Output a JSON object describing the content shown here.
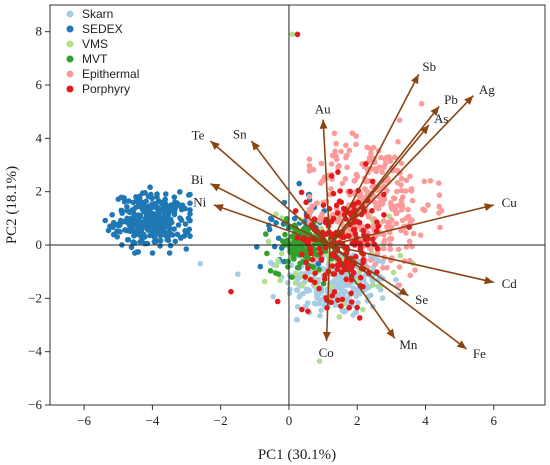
{
  "chart_data": {
    "type": "scatter",
    "subtype": "pca-biplot",
    "xlabel": "PC1 (30.1%)",
    "ylabel": "PC2 (18.1%)",
    "xlim": [
      -7,
      7.5
    ],
    "ylim": [
      -6,
      9
    ],
    "xticks": [
      -6,
      -4,
      -2,
      0,
      2,
      4,
      6
    ],
    "yticks": [
      -6,
      -4,
      -2,
      0,
      2,
      4,
      6,
      8
    ],
    "legend_position": "top-left",
    "grid": false,
    "series": [
      {
        "name": "Skarn",
        "color": "#a6cde3",
        "cloud": {
          "cx": 1.4,
          "cy": -1.4,
          "sx": 0.75,
          "sy": 0.65,
          "n": 260,
          "xmin": -1.5,
          "xmax": 3.2,
          "ymin": -2.8,
          "ymax": 0.3
        }
      },
      {
        "name": "SEDEX",
        "color": "#1f78b4",
        "cloud": {
          "cx": -4.0,
          "cy": 0.9,
          "sx": 0.55,
          "sy": 0.5,
          "n": 300,
          "xmin": -5.5,
          "xmax": -2.9,
          "ymin": -0.3,
          "ymax": 3.0
        },
        "cloud2": {
          "cx": 0.2,
          "cy": 0.7,
          "sx": 0.5,
          "sy": 0.8,
          "n": 45
        }
      },
      {
        "name": "VMS",
        "color": "#b2df8a",
        "cloud": {
          "cx": 1.3,
          "cy": -0.5,
          "sx": 0.8,
          "sy": 1.0,
          "n": 70
        }
      },
      {
        "name": "MVT",
        "color": "#33a02c",
        "cloud": {
          "cx": 0.4,
          "cy": -0.1,
          "sx": 0.45,
          "sy": 0.45,
          "n": 110
        }
      },
      {
        "name": "Epithermal",
        "color": "#fb9a99",
        "cloud": {
          "cx": 2.4,
          "cy": 1.5,
          "sx": 0.9,
          "sy": 1.3,
          "n": 320,
          "xmin": 0.6,
          "xmax": 4.6,
          "ymin": -1.5,
          "ymax": 5.3
        }
      },
      {
        "name": "Porphyry",
        "color": "#e31a1c",
        "cloud": {
          "cx": 1.6,
          "cy": 0.2,
          "sx": 0.6,
          "sy": 1.1,
          "n": 200
        }
      }
    ],
    "outliers": [
      {
        "series": "VMS",
        "x": 0.1,
        "y": 7.9
      },
      {
        "series": "Porphyry",
        "x": 0.25,
        "y": 7.9
      },
      {
        "series": "Porphyry",
        "x": -1.7,
        "y": -1.75
      },
      {
        "series": "Skarn",
        "x": -2.6,
        "y": -0.7
      }
    ],
    "loadings_origin": [
      1.2,
      0
    ],
    "loadings": [
      {
        "label": "Sb",
        "x": 3.8,
        "y": 6.4
      },
      {
        "label": "Ag",
        "x": 5.4,
        "y": 5.6
      },
      {
        "label": "Pb",
        "x": 4.4,
        "y": 5.2
      },
      {
        "label": "As",
        "x": 4.1,
        "y": 4.5
      },
      {
        "label": "Au",
        "x": 1.0,
        "y": 4.7
      },
      {
        "label": "Te",
        "x": -2.3,
        "y": 3.9
      },
      {
        "label": "Sn",
        "x": -1.1,
        "y": 3.9
      },
      {
        "label": "Bi",
        "x": -2.3,
        "y": 2.3
      },
      {
        "label": "Ni",
        "x": -2.2,
        "y": 1.5
      },
      {
        "label": "Cu",
        "x": 6.0,
        "y": 1.5
      },
      {
        "label": "Cd",
        "x": 6.0,
        "y": -1.4
      },
      {
        "label": "Se",
        "x": 3.5,
        "y": -1.9
      },
      {
        "label": "Mn",
        "x": 3.1,
        "y": -3.5
      },
      {
        "label": "Fe",
        "x": 5.2,
        "y": -3.9
      },
      {
        "label": "Co",
        "x": 1.1,
        "y": -3.6
      }
    ],
    "loading_color": "#8b4513"
  }
}
